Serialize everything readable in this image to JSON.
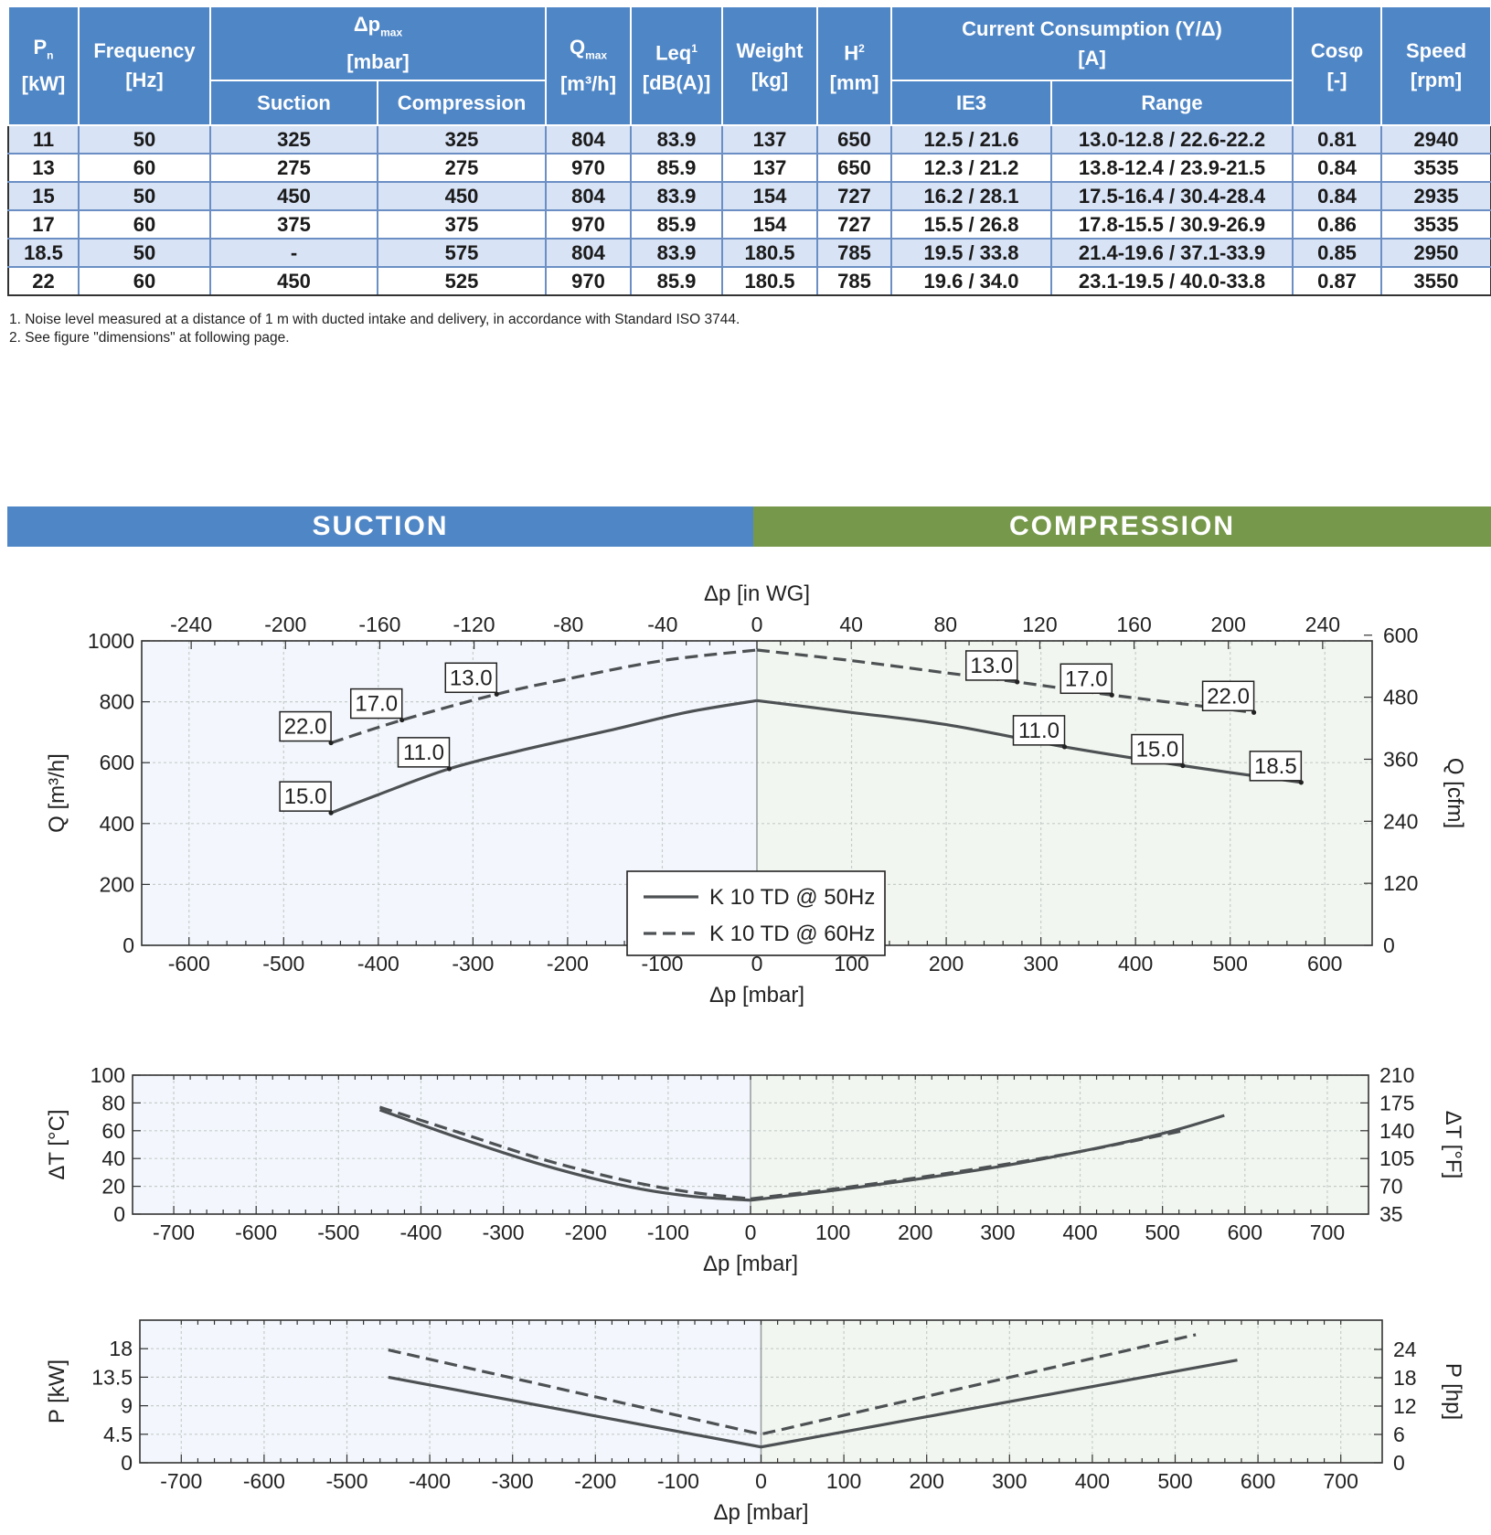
{
  "table": {
    "headers": {
      "pn": "P",
      "pn_sub": "n",
      "pn_unit": "[kW]",
      "freq": "Frequency",
      "freq_unit": "[Hz]",
      "dp": "Δp",
      "dp_sub": "max",
      "dp_unit": "[mbar]",
      "suction": "Suction",
      "compression": "Compression",
      "q": "Q",
      "q_sub": "max",
      "q_unit": "[m³/h]",
      "leq": "Leq",
      "leq_sup": "1",
      "leq_unit": "[dB(A)]",
      "weight": "Weight",
      "weight_unit": "[kg]",
      "h": "H",
      "h_sup": "2",
      "h_unit": "[mm]",
      "current": "Current Consumption (Y/Δ)",
      "current_unit": "[A]",
      "ie3": "IE3",
      "range": "Range",
      "cos": "Cosφ",
      "cos_unit": "[-]",
      "speed": "Speed",
      "speed_unit": "[rpm]"
    },
    "rows": [
      [
        "11",
        "50",
        "325",
        "325",
        "804",
        "83.9",
        "137",
        "650",
        "12.5 / 21.6",
        "13.0-12.8 / 22.6-22.2",
        "0.81",
        "2940"
      ],
      [
        "13",
        "60",
        "275",
        "275",
        "970",
        "85.9",
        "137",
        "650",
        "12.3 / 21.2",
        "13.8-12.4 / 23.9-21.5",
        "0.84",
        "3535"
      ],
      [
        "15",
        "50",
        "450",
        "450",
        "804",
        "83.9",
        "154",
        "727",
        "16.2 / 28.1",
        "17.5-16.4 / 30.4-28.4",
        "0.84",
        "2935"
      ],
      [
        "17",
        "60",
        "375",
        "375",
        "970",
        "85.9",
        "154",
        "727",
        "15.5 / 26.8",
        "17.8-15.5 / 30.9-26.9",
        "0.86",
        "3535"
      ],
      [
        "18.5",
        "50",
        "-",
        "575",
        "804",
        "83.9",
        "180.5",
        "785",
        "19.5 / 33.8",
        "21.4-19.6 / 37.1-33.9",
        "0.85",
        "2950"
      ],
      [
        "22",
        "60",
        "450",
        "525",
        "970",
        "85.9",
        "180.5",
        "785",
        "19.6 / 34.0",
        "23.1-19.5 / 40.0-33.8",
        "0.87",
        "3550"
      ]
    ]
  },
  "notes": [
    "1.  Noise level measured at a distance of 1 m with ducted intake and delivery, in accordance with Standard ISO 3744.",
    "2.  See figure \"dimensions\" at following page."
  ],
  "banner": {
    "suction": "SUCTION",
    "compression": "COMPRESSION"
  },
  "colors": {
    "table_header": "#4f86c6",
    "table_row_alt": "#d8e3f5",
    "suction_bg": "#f3f7fd",
    "compression_bg": "#f2f6f0",
    "compression_banner": "#76984a",
    "line": "#4d5153"
  },
  "chart_data": [
    {
      "type": "line",
      "xlabel": "Δp [mbar]",
      "xlim": [
        -650,
        650
      ],
      "xticks": [
        -600,
        -500,
        -400,
        -300,
        -200,
        -100,
        0,
        100,
        200,
        300,
        400,
        500,
        600
      ],
      "x2label": "Δp [in WG]",
      "x2lim": [
        -261,
        261
      ],
      "x2ticks": [
        -240,
        -200,
        -160,
        -120,
        -80,
        -40,
        0,
        40,
        80,
        120,
        160,
        200,
        240
      ],
      "ylabel": "Q [m³/h]",
      "ylim": [
        0,
        1000
      ],
      "yticks": [
        0,
        200,
        400,
        600,
        800,
        1000
      ],
      "y2label": "Q [cfm]",
      "y2lim": [
        0,
        589
      ],
      "y2ticks": [
        0,
        120,
        240,
        360,
        480,
        600
      ],
      "legend_position": "bottom-center",
      "series": [
        {
          "name": "K 10 TD @ 50Hz",
          "style": "solid",
          "x": [
            -450,
            -400,
            -325,
            -250,
            -150,
            -75,
            0,
            100,
            200,
            325,
            450,
            575
          ],
          "y": [
            435,
            495,
            580,
            640,
            710,
            765,
            804,
            765,
            725,
            652,
            590,
            535
          ]
        },
        {
          "name": "K 10 TD @ 60Hz",
          "style": "dashed",
          "x": [
            -450,
            -375,
            -275,
            -200,
            -100,
            0,
            100,
            200,
            275,
            375,
            525
          ],
          "y": [
            665,
            740,
            825,
            875,
            935,
            970,
            935,
            895,
            865,
            822,
            765
          ]
        }
      ],
      "annotations": [
        {
          "text": "15.0",
          "x": -450,
          "y": 435
        },
        {
          "text": "11.0",
          "x": -325,
          "y": 580
        },
        {
          "text": "22.0",
          "x": -450,
          "y": 665
        },
        {
          "text": "17.0",
          "x": -375,
          "y": 740
        },
        {
          "text": "13.0",
          "x": -275,
          "y": 825
        },
        {
          "text": "11.0",
          "x": 325,
          "y": 652
        },
        {
          "text": "15.0",
          "x": 450,
          "y": 590
        },
        {
          "text": "18.5",
          "x": 575,
          "y": 535
        },
        {
          "text": "13.0",
          "x": 275,
          "y": 865
        },
        {
          "text": "17.0",
          "x": 375,
          "y": 822
        },
        {
          "text": "22.0",
          "x": 525,
          "y": 765
        }
      ]
    },
    {
      "type": "line",
      "xlabel": "Δp [mbar]",
      "xlim": [
        -750,
        750
      ],
      "xticks": [
        -700,
        -600,
        -500,
        -400,
        -300,
        -200,
        -100,
        0,
        100,
        200,
        300,
        400,
        500,
        600,
        700
      ],
      "ylabel": "ΔT [°C]",
      "ylim": [
        0,
        100
      ],
      "yticks": [
        0,
        20,
        40,
        60,
        80,
        100
      ],
      "y2label": "ΔT [°F]",
      "y2lim": [
        35,
        210
      ],
      "y2ticks": [
        35,
        70,
        105,
        140,
        175,
        210
      ],
      "series": [
        {
          "name": "K 10 TD @ 50Hz",
          "style": "solid",
          "x": [
            -450,
            -350,
            -250,
            -150,
            -75,
            0,
            100,
            200,
            300,
            400,
            500,
            575
          ],
          "y": [
            75,
            54,
            35,
            20,
            13,
            10,
            17,
            25,
            34,
            45,
            58,
            71
          ]
        },
        {
          "name": "K 10 TD @ 60Hz",
          "style": "dashed",
          "x": [
            -450,
            -350,
            -250,
            -150,
            -75,
            0,
            100,
            200,
            300,
            400,
            525
          ],
          "y": [
            77,
            58,
            39,
            24,
            16,
            11,
            18,
            26,
            35,
            45,
            60
          ]
        }
      ]
    },
    {
      "type": "line",
      "xlabel": "Δp [mbar]",
      "xlim": [
        -750,
        750
      ],
      "xticks": [
        -700,
        -600,
        -500,
        -400,
        -300,
        -200,
        -100,
        0,
        100,
        200,
        300,
        400,
        500,
        600,
        700
      ],
      "ylabel": "P [kW]",
      "ylim": [
        0,
        22.5
      ],
      "yticks": [
        0,
        4.5,
        9,
        13.5,
        18
      ],
      "ytick_labels": [
        "0",
        "4.5",
        "9",
        "13.5",
        "18"
      ],
      "y2label": "P [hp]",
      "y2lim": [
        0,
        30.2
      ],
      "y2ticks": [
        0,
        6,
        12,
        18,
        24
      ],
      "series": [
        {
          "name": "K 10 TD @ 50Hz",
          "style": "solid",
          "x": [
            -450,
            0,
            575
          ],
          "y": [
            13.5,
            2.5,
            16.2
          ]
        },
        {
          "name": "K 10 TD @ 60Hz",
          "style": "dashed",
          "x": [
            -450,
            0,
            525
          ],
          "y": [
            17.8,
            4.5,
            20.2
          ]
        }
      ]
    }
  ]
}
